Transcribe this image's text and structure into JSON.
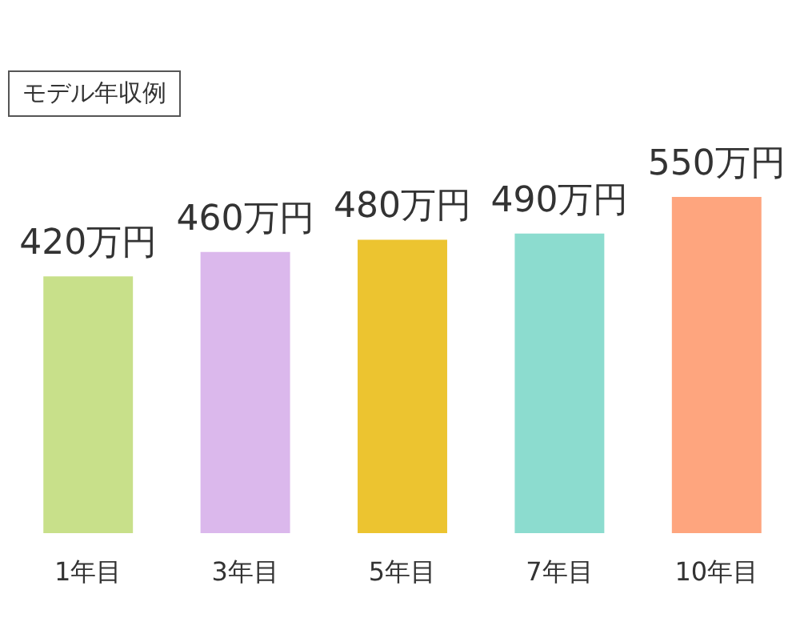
{
  "chart_data": {
    "type": "bar",
    "title": "モデル年収例",
    "categories": [
      "1年目",
      "3年目",
      "5年目",
      "7年目",
      "10年目"
    ],
    "values": [
      420,
      460,
      480,
      490,
      550
    ],
    "colors": [
      "#c8e08a",
      "#dbb8ec",
      "#ecc430",
      "#8cdccf",
      "#fea57e"
    ],
    "value_labels": [
      "420万円",
      "460万円",
      "480万円",
      "490万円",
      "550万円"
    ],
    "tick_labels": "x"
  }
}
